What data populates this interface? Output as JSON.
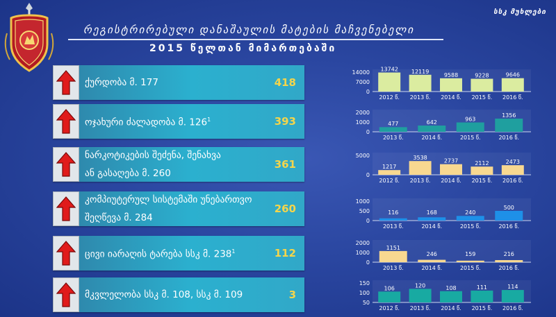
{
  "header": {
    "corner_label": "სსკ მუხლები",
    "title": "რეგისტრირებული დანაშაულის მატების მაჩვენებელი",
    "subtitle": "2015 წელთან მიმართებაში"
  },
  "colors": {
    "arrow": "#e01b1b",
    "value": "#f4d54b",
    "bar_bg": "#2bb0cf"
  },
  "crimes": [
    {
      "lines": [
        "ქურდობა მ. 177"
      ],
      "sup": "",
      "value": "418"
    },
    {
      "lines": [
        "ოჯახური ძალადობა მ. 126"
      ],
      "sup": "1",
      "value": "393"
    },
    {
      "lines": [
        "ნარკოტიკების შეძენა, შენახვა",
        "ან გასაღება მ. 260"
      ],
      "sup": "",
      "value": "361"
    },
    {
      "lines": [
        "კომპიუტერულ სისტემაში უნებართვო",
        "შეღწევა   მ. 284"
      ],
      "sup": "",
      "value": "260"
    },
    {
      "lines": [
        "ცივი იარაღის ტარება  სსკ მ. 238"
      ],
      "sup": "1",
      "value": "112"
    },
    {
      "lines": [
        "მკვლელობა სსკ მ. 108, სსკ მ. 109"
      ],
      "sup": "",
      "value": "3"
    }
  ],
  "chart_data": [
    {
      "type": "bar",
      "categories": [
        "2012 წ.",
        "2013 წ.",
        "2014 წ.",
        "2015 წ.",
        "2016 წ."
      ],
      "values": [
        13742,
        12119,
        9588,
        9228,
        9646
      ],
      "yticks": [
        0,
        7000,
        14000
      ],
      "ylim": [
        0,
        14000
      ],
      "color": "#dbeca0"
    },
    {
      "type": "bar",
      "categories": [
        "2013 წ.",
        "2014 წ.",
        "2015 წ.",
        "2016 წ."
      ],
      "values": [
        477,
        642,
        963,
        1356
      ],
      "yticks": [
        0,
        1000,
        2000
      ],
      "ylim": [
        0,
        2000
      ],
      "color": "#1f9f9f"
    },
    {
      "type": "bar",
      "categories": [
        "2012 წ.",
        "2013 წ.",
        "2014 წ.",
        "2015 წ.",
        "2016 წ."
      ],
      "values": [
        1217,
        3538,
        2737,
        2112,
        2473
      ],
      "yticks": [
        0,
        5000
      ],
      "ylim": [
        0,
        5000
      ],
      "color": "#f8d890"
    },
    {
      "type": "bar",
      "categories": [
        "2013 წ.",
        "2014 წ.",
        "2015 წ.",
        "2016 წ."
      ],
      "values": [
        116,
        168,
        240,
        500
      ],
      "yticks": [
        0,
        500,
        1000
      ],
      "ylim": [
        0,
        1000
      ],
      "color": "#1e90e8"
    },
    {
      "type": "bar",
      "categories": [
        "2013 წ.",
        "2014 წ.",
        "2015 წ.",
        "2016 წ."
      ],
      "values": [
        1151,
        246,
        159,
        216
      ],
      "yticks": [
        0,
        1000,
        2000
      ],
      "ylim": [
        0,
        2000
      ],
      "color": "#f8d890"
    },
    {
      "type": "bar",
      "categories": [
        "2012 წ.",
        "2013 წ.",
        "2014 წ.",
        "2015 წ.",
        "2016 წ."
      ],
      "values": [
        106,
        120,
        108,
        111,
        114
      ],
      "yticks": [
        50,
        100,
        150
      ],
      "ylim": [
        50,
        150
      ],
      "color": "#18aaa2"
    }
  ]
}
